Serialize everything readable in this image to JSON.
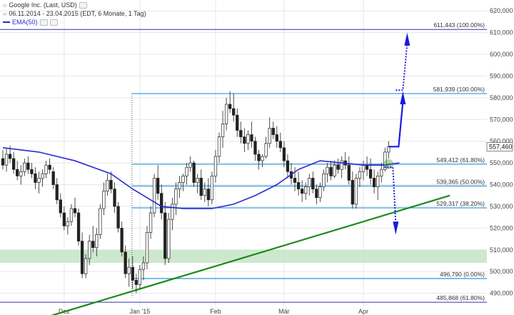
{
  "header": {
    "instrument": "Google Inc. (Last, USD)",
    "range": "06.11.2014 - 23.04.2015 (EDT, 6 Monate, 1 Tag)",
    "ema_label": "EMA(50)"
  },
  "colors": {
    "candle": "#222222",
    "ema": "#2a2ad0",
    "level_line": "#3aa0e0",
    "arrow": "#1a1ae0",
    "trendline": "#1a8a1a",
    "support_zone": "#c8e6c8",
    "grid": "#e6e6e6",
    "extreme_line": "#3030b0"
  },
  "chart_data": {
    "type": "candlestick",
    "title": "Google Inc. (Last, USD)",
    "ylim": [
      480,
      625
    ],
    "y_ticks": [
      490,
      500,
      510,
      520,
      530,
      540,
      550,
      560,
      570,
      580,
      590,
      600,
      610,
      620
    ],
    "y_tick_labels": [
      "490,000",
      "500,000",
      "510,000",
      "520,000",
      "530,000",
      "540,000",
      "550,000",
      "560,000",
      "570,000",
      "580,000",
      "590,000",
      "600,000",
      "610,000",
      "620,000"
    ],
    "x_labels": [
      {
        "label": "Dez",
        "bar": 17
      },
      {
        "label": "Jan '15",
        "bar": 38
      },
      {
        "label": "Feb",
        "bar": 59
      },
      {
        "label": "Mär",
        "bar": 78
      },
      {
        "label": "Apr",
        "bar": 100
      }
    ],
    "last_price": {
      "value": 557.46,
      "label": "557,460"
    },
    "ohlc": [
      [
        552,
        556,
        547,
        549
      ],
      [
        549,
        557,
        546,
        554
      ],
      [
        554,
        558,
        550,
        552
      ],
      [
        552,
        555,
        545,
        547
      ],
      [
        547,
        551,
        542,
        544
      ],
      [
        544,
        549,
        540,
        546
      ],
      [
        546,
        552,
        544,
        550
      ],
      [
        550,
        553,
        545,
        547
      ],
      [
        547,
        550,
        543,
        545
      ],
      [
        545,
        548,
        538,
        541
      ],
      [
        541,
        546,
        536,
        543
      ],
      [
        543,
        547,
        539,
        545
      ],
      [
        545,
        551,
        543,
        549
      ],
      [
        549,
        552,
        545,
        547
      ],
      [
        546,
        548,
        538,
        540
      ],
      [
        540,
        543,
        531,
        533
      ],
      [
        533,
        536,
        525,
        527
      ],
      [
        527,
        530,
        519,
        521
      ],
      [
        521,
        525,
        517,
        523
      ],
      [
        523,
        531,
        521,
        529
      ],
      [
        529,
        534,
        525,
        527
      ],
      [
        527,
        529,
        512,
        514
      ],
      [
        514,
        518,
        497,
        499
      ],
      [
        499,
        508,
        497,
        506
      ],
      [
        506,
        517,
        503,
        514
      ],
      [
        514,
        521,
        509,
        511
      ],
      [
        511,
        520,
        507,
        517
      ],
      [
        517,
        531,
        515,
        529
      ],
      [
        529,
        541,
        526,
        537
      ],
      [
        537,
        545,
        535,
        542
      ],
      [
        542,
        546,
        536,
        538
      ],
      [
        538,
        541,
        527,
        530
      ],
      [
        530,
        532,
        518,
        520
      ],
      [
        520,
        523,
        507,
        509
      ],
      [
        509,
        512,
        497,
        499
      ],
      [
        499,
        506,
        493,
        502
      ],
      [
        502,
        507,
        492,
        496
      ],
      [
        496,
        499,
        490,
        494
      ],
      [
        494,
        503,
        492,
        501
      ],
      [
        501,
        507,
        496,
        504
      ],
      [
        504,
        521,
        501,
        518
      ],
      [
        518,
        530,
        515,
        527
      ],
      [
        527,
        545,
        525,
        543
      ],
      [
        543,
        549,
        533,
        536
      ],
      [
        536,
        540,
        524,
        527
      ],
      [
        527,
        532,
        503,
        506
      ],
      [
        506,
        527,
        504,
        524
      ],
      [
        524,
        534,
        519,
        531
      ],
      [
        531,
        541,
        526,
        538
      ],
      [
        538,
        544,
        534,
        541
      ],
      [
        541,
        545,
        537,
        544
      ],
      [
        544,
        550,
        540,
        548
      ],
      [
        548,
        553,
        546,
        550
      ],
      [
        550,
        551,
        539,
        541
      ],
      [
        541,
        545,
        536,
        543
      ],
      [
        543,
        547,
        533,
        535
      ],
      [
        535,
        541,
        532,
        538
      ],
      [
        538,
        543,
        530,
        533
      ],
      [
        533,
        546,
        531,
        544
      ],
      [
        544,
        556,
        541,
        553
      ],
      [
        553,
        564,
        550,
        562
      ],
      [
        562,
        574,
        557,
        568
      ],
      [
        568,
        580,
        565,
        577
      ],
      [
        577,
        583,
        573,
        575
      ],
      [
        575,
        582,
        569,
        572
      ],
      [
        572,
        575,
        562,
        565
      ],
      [
        565,
        569,
        559,
        562
      ],
      [
        562,
        566,
        555,
        559
      ],
      [
        559,
        565,
        556,
        563
      ],
      [
        563,
        569,
        557,
        560
      ],
      [
        560,
        562,
        551,
        554
      ],
      [
        554,
        556,
        547,
        551
      ],
      [
        551,
        554,
        548,
        553
      ],
      [
        553,
        562,
        552,
        559
      ],
      [
        559,
        571,
        557,
        566
      ],
      [
        566,
        569,
        561,
        563
      ],
      [
        563,
        567,
        557,
        560
      ],
      [
        560,
        564,
        555,
        557
      ],
      [
        557,
        560,
        548,
        551
      ],
      [
        551,
        554,
        543,
        546
      ],
      [
        546,
        550,
        540,
        543
      ],
      [
        543,
        548,
        537,
        541
      ],
      [
        541,
        546,
        535,
        538
      ],
      [
        538,
        542,
        532,
        536
      ],
      [
        536,
        541,
        533,
        539
      ],
      [
        539,
        545,
        535,
        543
      ],
      [
        543,
        546,
        536,
        538
      ],
      [
        538,
        540,
        531,
        534
      ],
      [
        534,
        541,
        532,
        539
      ],
      [
        539,
        547,
        537,
        545
      ],
      [
        545,
        550,
        541,
        548
      ],
      [
        548,
        551,
        542,
        544
      ],
      [
        544,
        551,
        543,
        549
      ],
      [
        549,
        552,
        545,
        547
      ],
      [
        547,
        553,
        543,
        551
      ],
      [
        551,
        555,
        547,
        549
      ],
      [
        549,
        553,
        540,
        542
      ],
      [
        542,
        546,
        529,
        531
      ],
      [
        531,
        545,
        529,
        543
      ],
      [
        543,
        548,
        539,
        546
      ],
      [
        546,
        551,
        542,
        549
      ],
      [
        549,
        553,
        544,
        547
      ],
      [
        547,
        552,
        540,
        543
      ],
      [
        543,
        547,
        536,
        539
      ],
      [
        539,
        546,
        533,
        544
      ],
      [
        544,
        550,
        541,
        547
      ],
      [
        547,
        557,
        546,
        555
      ],
      [
        555,
        560,
        552,
        557.46
      ]
    ],
    "ema50": [
      [
        0,
        557
      ],
      [
        10,
        555
      ],
      [
        20,
        551
      ],
      [
        30,
        545
      ],
      [
        36,
        538
      ],
      [
        40,
        534
      ],
      [
        44,
        530
      ],
      [
        50,
        529
      ],
      [
        58,
        529
      ],
      [
        64,
        531
      ],
      [
        70,
        535
      ],
      [
        76,
        540
      ],
      [
        82,
        547
      ],
      [
        88,
        551
      ],
      [
        94,
        550
      ],
      [
        100,
        549
      ],
      [
        106,
        549
      ],
      [
        110,
        550
      ]
    ],
    "horizontal_levels": [
      {
        "value": 611.443,
        "label": "611,443 (100.00%)",
        "start_bar": 0,
        "style": "extreme"
      },
      {
        "value": 581.939,
        "label": "581,939 (100.00%)",
        "start_bar": 35,
        "style": "fib"
      },
      {
        "value": 549.412,
        "label": "549,412 (61.80%)",
        "start_bar": 35,
        "style": "fib"
      },
      {
        "value": 539.365,
        "label": "539,365 (50.00%)",
        "start_bar": 35,
        "style": "fib"
      },
      {
        "value": 529.317,
        "label": "529,317 (38.20%)",
        "start_bar": 35,
        "style": "fib"
      },
      {
        "value": 496.79,
        "label": "496,790 (0.00%)",
        "start_bar": 35,
        "style": "fib"
      },
      {
        "value": 485.868,
        "label": "485,868 (61.80%)",
        "start_bar": 0,
        "style": "extreme"
      }
    ],
    "support_zone": {
      "low": 504,
      "high": 510
    },
    "trendline": {
      "from": {
        "bar": 10,
        "value": 478
      },
      "to": {
        "bar": 124,
        "value": 535
      }
    },
    "vertical_marker_bar": 35
  }
}
